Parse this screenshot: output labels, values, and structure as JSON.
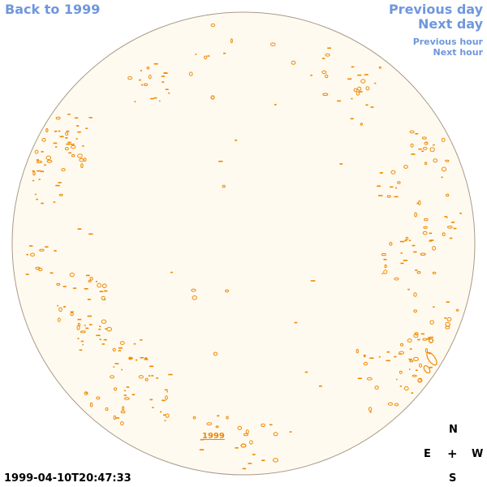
{
  "nav": {
    "back": "Back to 1999",
    "previous_day": "Previous day",
    "next_day": "Next day",
    "previous_hour": "Previous hour",
    "next_hour": "Next hour"
  },
  "timestamp": "1999-04-10T20:47:33",
  "year_marker": "1999",
  "compass": {
    "north": "N",
    "east": "E",
    "center": "+",
    "west": "W",
    "south": "S"
  },
  "colors": {
    "link": "#6f97dd",
    "disk_fill": "#fffaf0",
    "disk_border": "#a89a88",
    "contour": "#ee8800"
  }
}
